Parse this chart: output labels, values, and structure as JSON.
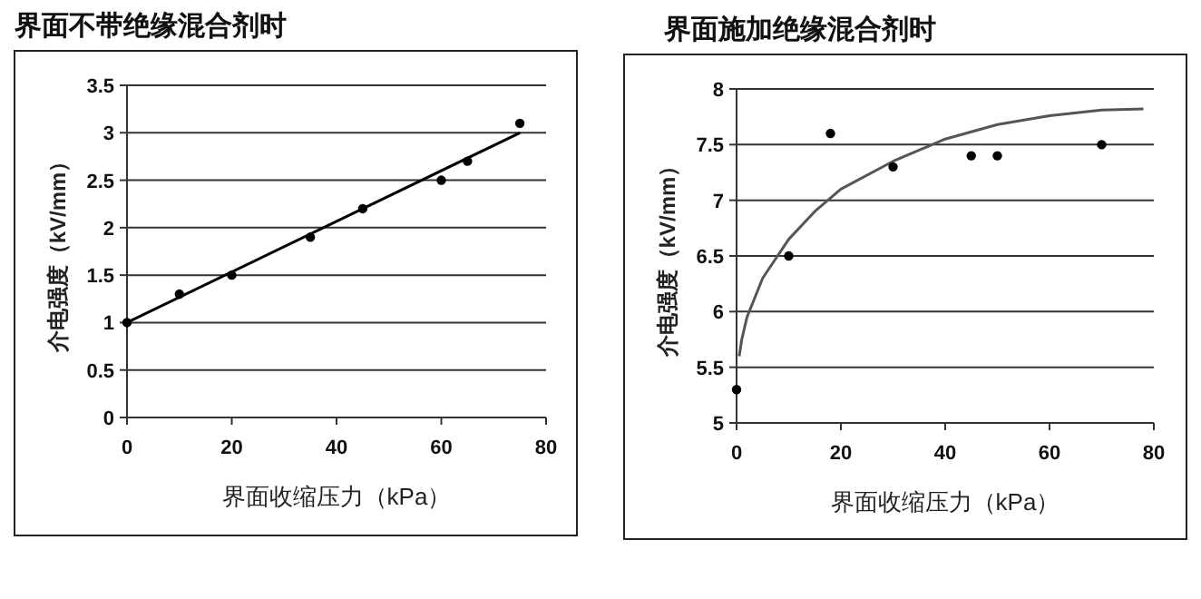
{
  "chart_data": [
    {
      "type": "scatter",
      "title": "界面不带绝缘混合剂时",
      "xlabel": "界面收缩压力（kPa）",
      "ylabel": "介电强度（kV/mm）",
      "xlim": [
        0,
        80
      ],
      "xticks": [
        0,
        20,
        40,
        60,
        80
      ],
      "ylim": [
        0,
        3.5
      ],
      "yticks": [
        0,
        0.5,
        1,
        1.5,
        2,
        2.5,
        3,
        3.5
      ],
      "grid": "y",
      "marker": "circle",
      "series": [
        {
          "color": "#000000",
          "x": [
            0,
            10,
            20,
            35,
            45,
            60,
            65,
            75
          ],
          "values": [
            1,
            1.3,
            1.5,
            1.9,
            2.2,
            2.5,
            2.7,
            3.1
          ]
        },
        {
          "type": "line",
          "marker": "none",
          "color": "#000000",
          "x": [
            0,
            75
          ],
          "values": [
            1,
            3
          ]
        }
      ]
    },
    {
      "type": "scatter",
      "title": "界面施加绝缘混合剂时",
      "xlabel": "界面收缩压力（kPa）",
      "ylabel": "介电强度（kV/mm）",
      "xlim": [
        0,
        80
      ],
      "xticks": [
        0,
        20,
        40,
        60,
        80
      ],
      "ylim": [
        5,
        8
      ],
      "yticks": [
        5,
        5.5,
        6,
        6.5,
        7,
        7.5,
        8
      ],
      "grid": "y",
      "marker": "circle",
      "series": [
        {
          "color": "#000000",
          "x": [
            0,
            10,
            18,
            30,
            45,
            50,
            70
          ],
          "values": [
            5.3,
            6.5,
            7.6,
            7.3,
            7.4,
            7.4,
            7.5
          ]
        },
        {
          "type": "line",
          "marker": "none",
          "color": "#555555",
          "x": [
            0.5,
            1,
            2,
            5,
            10,
            15,
            20,
            30,
            40,
            50,
            60,
            70,
            78
          ],
          "values": [
            5.6,
            5.75,
            5.95,
            6.3,
            6.65,
            6.9,
            7.1,
            7.35,
            7.55,
            7.68,
            7.76,
            7.81,
            7.82
          ]
        }
      ]
    }
  ]
}
